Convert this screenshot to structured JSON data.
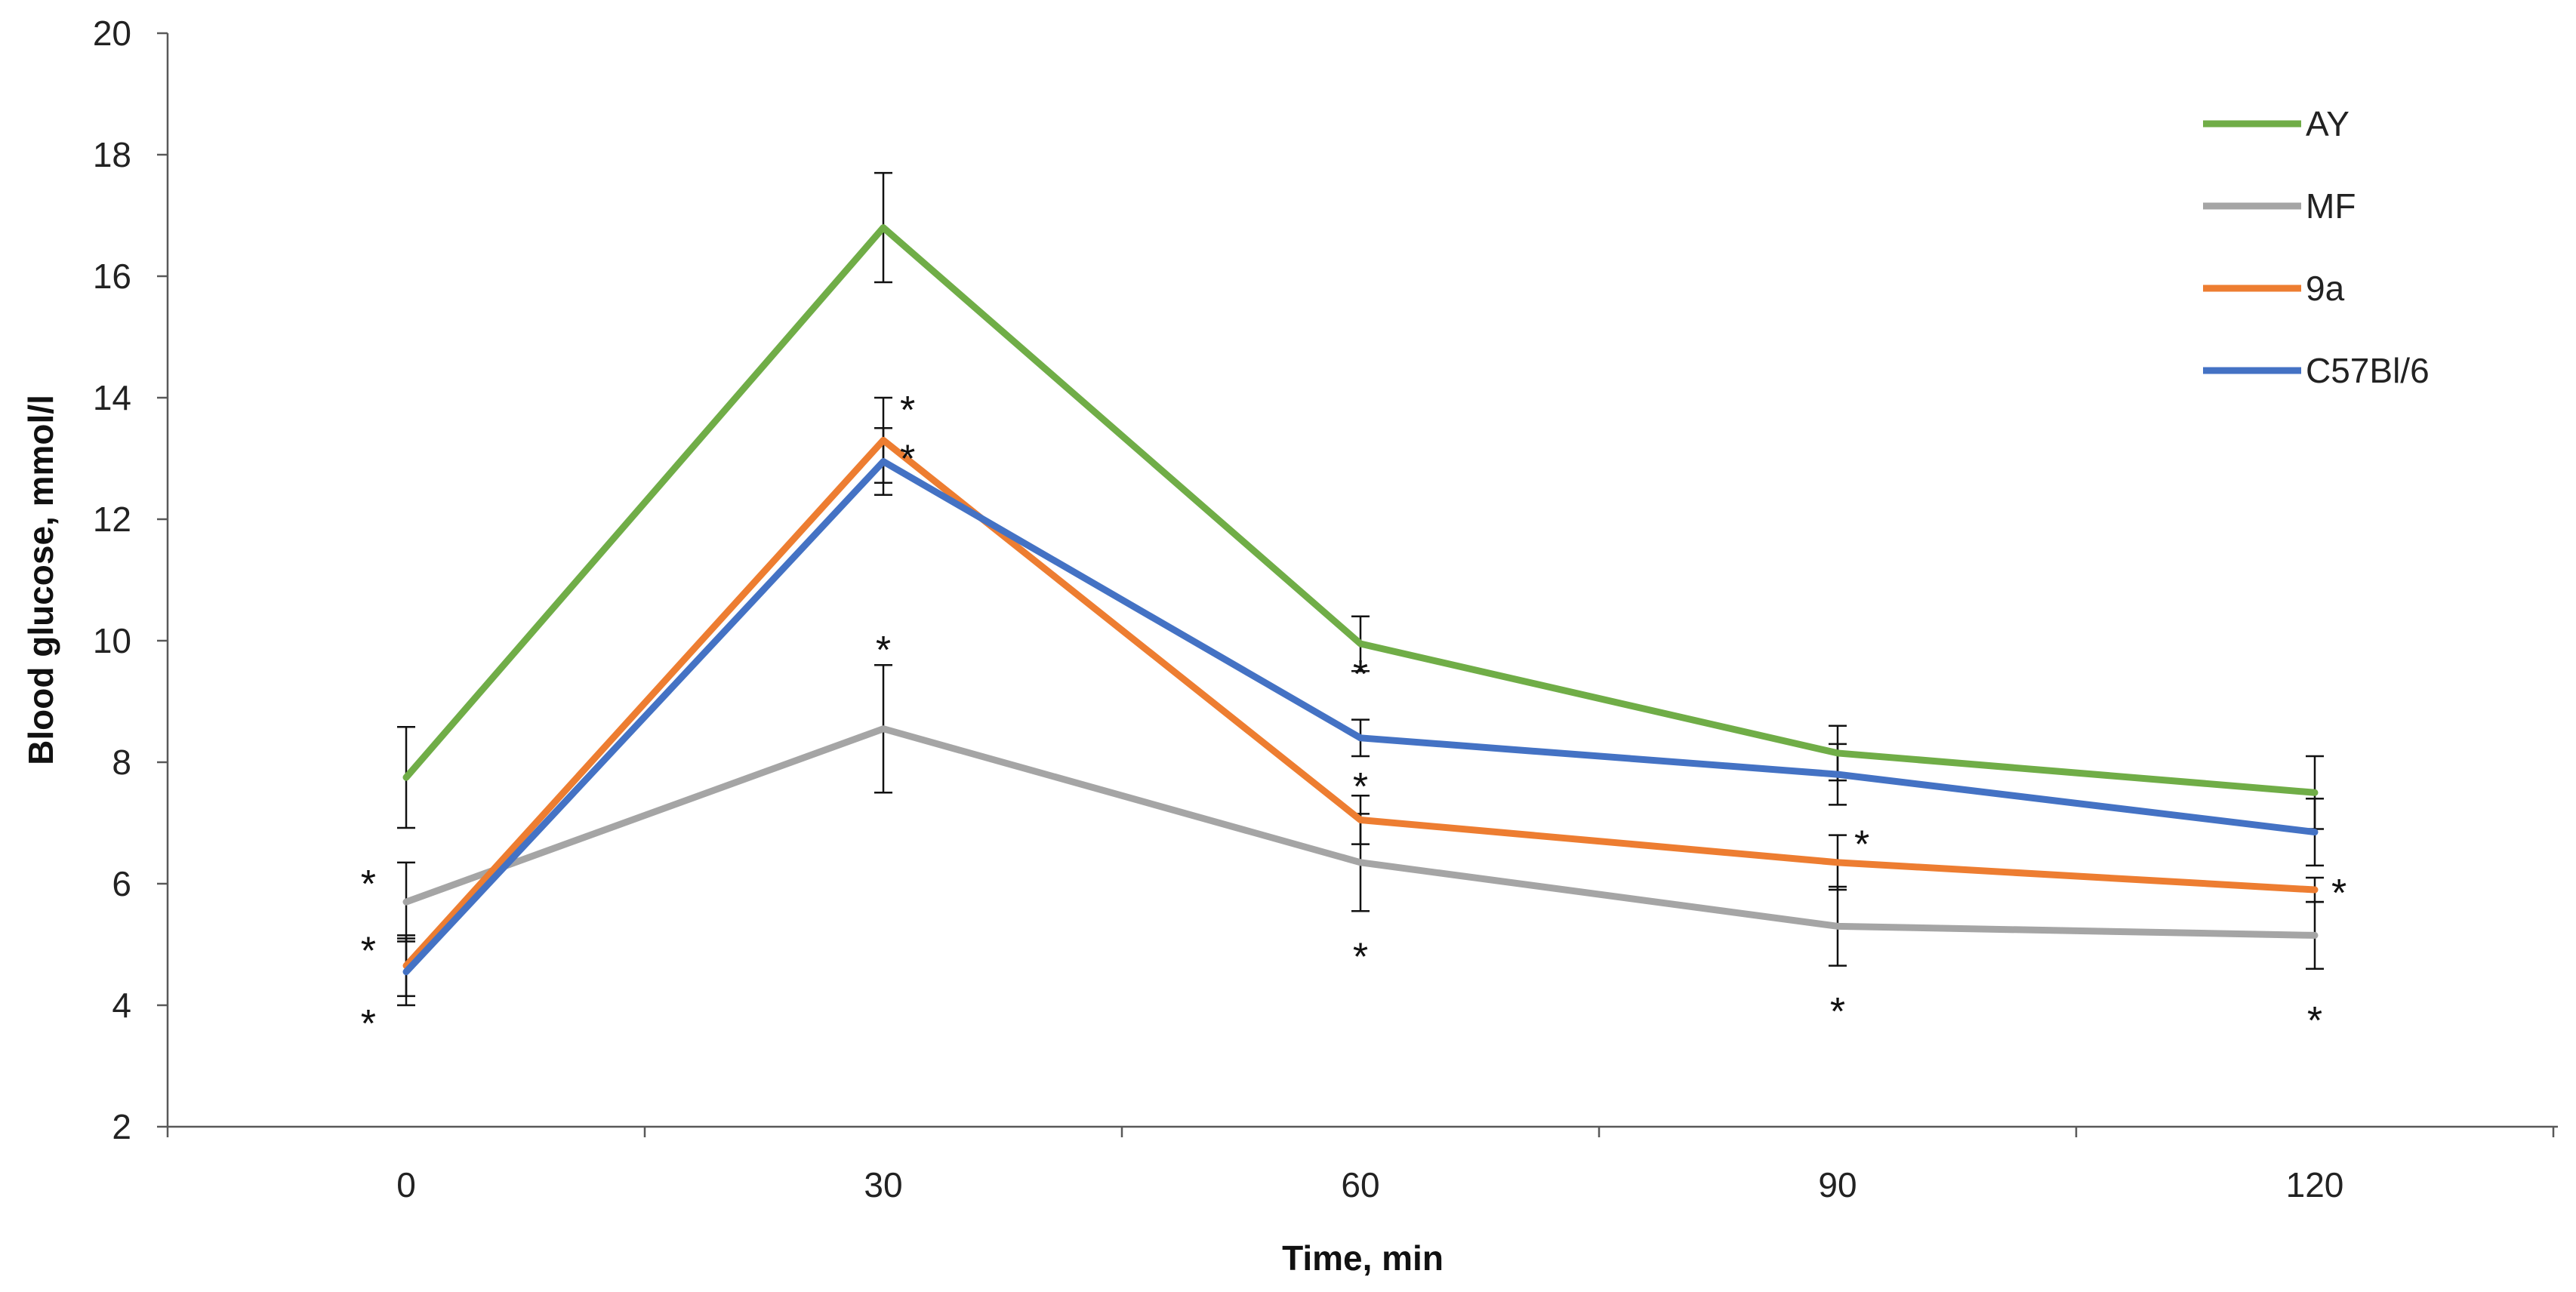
{
  "chart_data": {
    "type": "line",
    "title": "",
    "xlabel": "Time, min",
    "ylabel": "Blood glucose, mmol/l",
    "x": [
      0,
      30,
      60,
      90,
      120
    ],
    "x_tick_labels": [
      "0",
      "30",
      "60",
      "90",
      "120"
    ],
    "ylim": [
      2,
      20
    ],
    "y_ticks": [
      2,
      4,
      6,
      8,
      10,
      12,
      14,
      16,
      18,
      20
    ],
    "y_tick_labels": [
      "2",
      "4",
      "6",
      "8",
      "10",
      "12",
      "14",
      "16",
      "18",
      "20"
    ],
    "grid": false,
    "legend_position": "top-right",
    "series": [
      {
        "name": "AY",
        "color": "#70AD47",
        "values": [
          7.75,
          16.8,
          9.95,
          8.15,
          7.5
        ],
        "errors": [
          0.83,
          0.9,
          0.45,
          0.45,
          0.6
        ]
      },
      {
        "name": "MF",
        "color": "#A5A5A5",
        "values": [
          5.7,
          8.55,
          6.35,
          5.3,
          5.15
        ],
        "errors": [
          0.65,
          1.05,
          0.8,
          0.65,
          0.55
        ]
      },
      {
        "name": "9a",
        "color": "#ED7D31",
        "values": [
          4.65,
          13.3,
          7.05,
          6.35,
          5.9
        ],
        "errors": [
          0.5,
          0.7,
          0.4,
          0.45,
          0.2
        ]
      },
      {
        "name": "C57Bl/6",
        "color": "#4472C4",
        "values": [
          4.55,
          12.95,
          8.4,
          7.8,
          6.85
        ],
        "errors": [
          0.55,
          0.55,
          0.3,
          0.5,
          0.55
        ]
      }
    ],
    "annotations": [
      {
        "text": "*",
        "x": 0,
        "y": 6.1,
        "side": "left"
      },
      {
        "text": "*",
        "x": 0,
        "y": 5.0,
        "side": "left"
      },
      {
        "text": "*",
        "x": 0,
        "y": 3.8,
        "side": "left"
      },
      {
        "text": "*",
        "x": 30,
        "y": 13.9,
        "side": "right"
      },
      {
        "text": "*",
        "x": 30,
        "y": 13.1,
        "side": "right"
      },
      {
        "text": "*",
        "x": 30,
        "y": 9.95,
        "side": "center"
      },
      {
        "text": "*",
        "x": 60,
        "y": 9.55,
        "side": "center"
      },
      {
        "text": "*",
        "x": 60,
        "y": 7.7,
        "side": "center"
      },
      {
        "text": "*",
        "x": 60,
        "y": 4.9,
        "side": "center"
      },
      {
        "text": "*",
        "x": 90,
        "y": 6.75,
        "side": "right"
      },
      {
        "text": "*",
        "x": 90,
        "y": 4.0,
        "side": "center"
      },
      {
        "text": "*",
        "x": 120,
        "y": 5.95,
        "side": "right"
      },
      {
        "text": "*",
        "x": 120,
        "y": 3.85,
        "side": "center"
      }
    ]
  }
}
